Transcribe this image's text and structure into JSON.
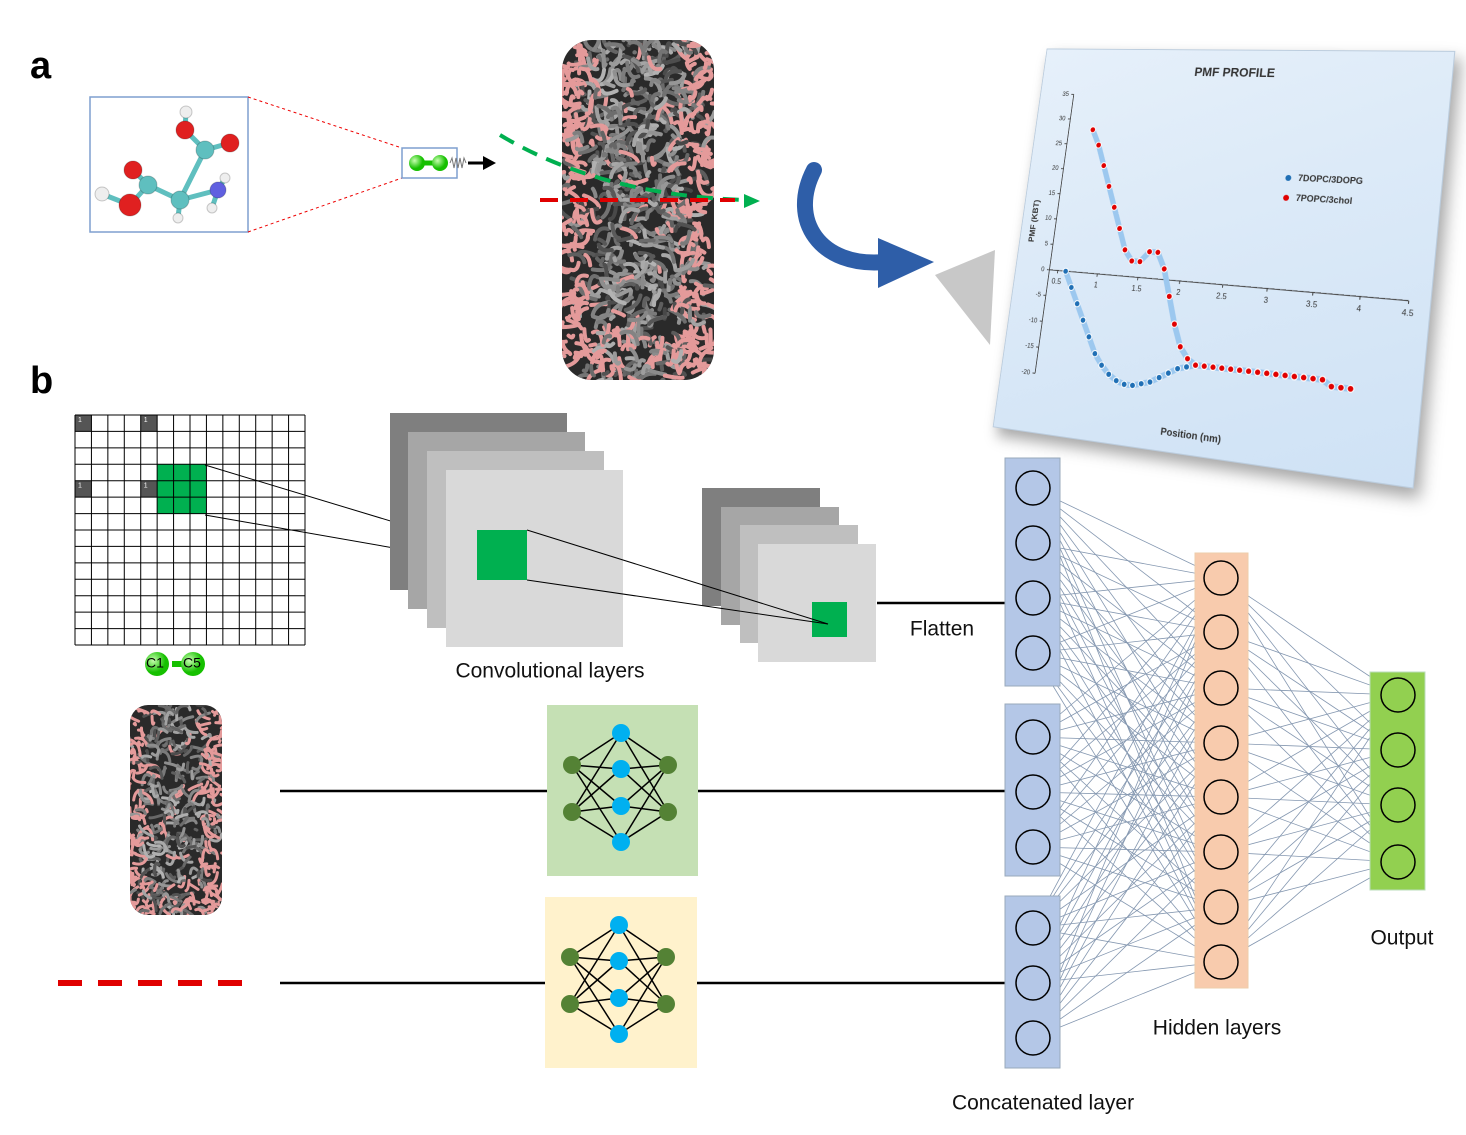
{
  "panel_labels": {
    "a": "a",
    "b": "b"
  },
  "chart_data": {
    "type": "line",
    "title": "PMF PROFILE",
    "y_label": "PMF (KBT)",
    "x_label": "Position (nm)",
    "x": [
      0.6,
      0.7,
      0.8,
      0.9,
      1.0,
      1.1,
      1.2,
      1.3,
      1.4,
      1.5,
      1.6,
      1.7,
      1.8,
      1.9,
      2.0,
      2.1,
      2.2,
      2.3,
      2.4,
      2.5,
      2.6,
      2.7,
      2.8,
      2.9,
      3.0,
      3.1,
      3.2,
      3.3,
      3.4,
      3.5,
      3.6,
      3.7,
      3.8,
      3.9,
      4.0
    ],
    "series": [
      {
        "name": "7DOPC/3DOPG",
        "color": "#1f6fb5",
        "values": [
          0,
          -3,
          -6,
          -9,
          -12,
          -15,
          -17,
          -18.5,
          -19.5,
          -20,
          -20,
          -19.5,
          -19,
          -18,
          -17,
          -16,
          -15.5,
          -15,
          -15,
          -15,
          -15,
          -15,
          -15,
          -15,
          -15,
          -15,
          -15,
          -15,
          -15,
          -15,
          null,
          null,
          null,
          null,
          null
        ]
      },
      {
        "name": "7POPC/3chol",
        "color": "#e00000",
        "values": [
          null,
          28,
          25,
          21,
          17,
          13,
          9,
          5,
          3,
          3,
          5,
          5,
          2,
          -3,
          -8,
          -12,
          -14,
          -15,
          -15,
          -15,
          -15,
          -15,
          -15,
          -15,
          -15,
          -15,
          -15,
          -15,
          -15,
          -15,
          -15,
          -15,
          -16,
          -16,
          -16
        ]
      }
    ],
    "xlim": [
      0.5,
      4.5
    ],
    "ylim": [
      -20,
      35
    ],
    "xticks": [
      0.5,
      1,
      1.5,
      2,
      2.5,
      3,
      3.5,
      4,
      4.5
    ],
    "yticks": [
      -20,
      -15,
      -10,
      -5,
      0,
      5,
      10,
      15,
      20,
      25,
      30,
      35
    ],
    "legend": "right"
  },
  "grid": {
    "cell_labels": [
      "1",
      "1",
      "1",
      "1"
    ]
  },
  "bead_labels": [
    "C1",
    "C5"
  ],
  "convolutional_label": "Convolutional layers",
  "flatten_label": "Flatten",
  "concatenated_label": "Concatenated layer",
  "hidden_label": "Hidden layers",
  "output_label": "Output"
}
